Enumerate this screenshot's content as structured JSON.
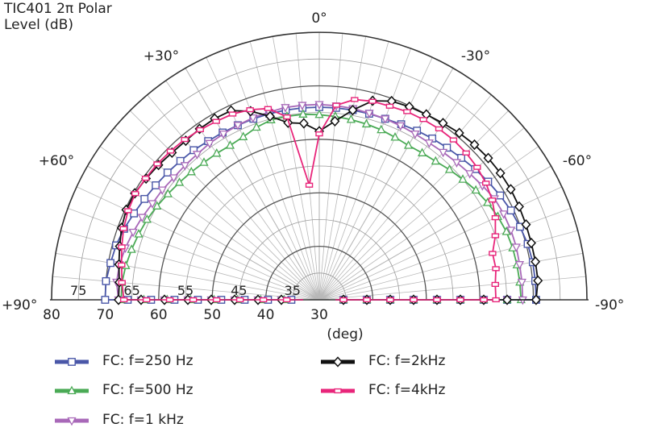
{
  "chart_data": {
    "type": "polar-line",
    "title_lines": [
      "TIC401 2π Polar",
      "Level  (dB)"
    ],
    "angle_labels": [
      {
        "angle": 0,
        "text": "0°"
      },
      {
        "angle": 30,
        "text": "+30°"
      },
      {
        "angle": -30,
        "text": "-30°"
      },
      {
        "angle": 60,
        "text": "+60°"
      },
      {
        "angle": -60,
        "text": "-60°"
      },
      {
        "angle": 90,
        "text": "+90°"
      },
      {
        "angle": -90,
        "text": "-90°"
      }
    ],
    "r_axis": {
      "min": 30,
      "max": 80,
      "ticks": [
        30,
        40,
        50,
        60,
        70,
        80
      ],
      "inner_labels": [
        35,
        45,
        55,
        65,
        75
      ],
      "unit": "(deg)"
    },
    "angle_step": 5,
    "series": [
      {
        "name": "FC: f=250 Hz",
        "color": "#4a57a8",
        "marker": "square",
        "angles": [
          90,
          85,
          80,
          75,
          70,
          65,
          60,
          55,
          50,
          45,
          40,
          35,
          30,
          25,
          20,
          15,
          10,
          5,
          0,
          -5,
          -10,
          -15,
          -20,
          -25,
          -30,
          -35,
          -40,
          -45,
          -50,
          -55,
          -60,
          -65,
          -70,
          -75,
          -80,
          -85,
          -90
        ],
        "values": [
          70,
          70,
          69.6,
          69.3,
          68.8,
          68.2,
          67.7,
          67.3,
          67,
          66.7,
          66.5,
          66.2,
          66.1,
          66,
          66,
          66,
          66,
          66,
          66,
          66,
          66,
          66,
          66,
          66.2,
          66.5,
          66.8,
          67.1,
          67.5,
          68,
          68.5,
          69,
          69.5,
          69.9,
          70.3,
          70.5,
          70.5,
          70.5
        ]
      },
      {
        "name": "FC: f=500 Hz",
        "color": "#4aaa55",
        "marker": "triangle-up",
        "angles": [
          90,
          85,
          80,
          75,
          70,
          65,
          60,
          55,
          50,
          45,
          40,
          35,
          30,
          25,
          20,
          15,
          10,
          5,
          0,
          -5,
          -10,
          -15,
          -20,
          -25,
          -30,
          -35,
          -40,
          -45,
          -50,
          -55,
          -60,
          -65,
          -70,
          -75,
          -80,
          -85,
          -90
        ],
        "values": [
          67,
          67,
          66.7,
          66.3,
          65.9,
          65.5,
          65,
          64.5,
          64.1,
          63.8,
          63.5,
          63.4,
          63.3,
          63.6,
          64.3,
          64.8,
          64.8,
          64.8,
          64.6,
          64.4,
          64.2,
          64,
          63.8,
          63.5,
          63.3,
          63.5,
          63.8,
          64.4,
          65,
          65.7,
          66.3,
          66.8,
          67.2,
          67.4,
          67.5,
          67.6,
          67.7
        ]
      },
      {
        "name": "FC: f=1 kHz",
        "color": "#a868b8",
        "marker": "triangle-down",
        "angles": [
          90,
          85,
          80,
          75,
          70,
          65,
          60,
          55,
          50,
          45,
          40,
          35,
          30,
          25,
          20,
          15,
          10,
          5,
          0,
          -5,
          -10,
          -15,
          -20,
          -25,
          -30,
          -35,
          -40,
          -45,
          -50,
          -55,
          -60,
          -65,
          -70,
          -75,
          -80,
          -85,
          -90
        ],
        "values": [
          67.5,
          68,
          67.9,
          67.5,
          67,
          66.5,
          66,
          65.8,
          65.5,
          65.5,
          65.5,
          65.7,
          65.8,
          66,
          66.2,
          66.3,
          66.5,
          66.5,
          66.5,
          66.4,
          66.3,
          66.1,
          66,
          65.9,
          65.8,
          65.8,
          66,
          66.3,
          66.7,
          67.2,
          67.8,
          68,
          68.1,
          68.1,
          68,
          68,
          68
        ]
      },
      {
        "name": "FC: f=2kHz",
        "color": "#111111",
        "marker": "diamond",
        "angles": [
          90,
          85,
          80,
          75,
          70,
          65,
          60,
          55,
          50,
          45,
          40,
          35,
          30,
          25,
          20,
          15,
          10,
          5,
          0,
          -5,
          -10,
          -15,
          -20,
          -25,
          -30,
          -35,
          -40,
          -45,
          -50,
          -55,
          -60,
          -65,
          -70,
          -75,
          -80,
          -85,
          -90
        ],
        "values": [
          67.5,
          67.5,
          68,
          68.6,
          69.3,
          69.8,
          69.8,
          69.5,
          69.2,
          68.9,
          68.8,
          69,
          69.1,
          69,
          67.5,
          65.5,
          63.6,
          63.1,
          61.5,
          63.5,
          66,
          68.5,
          69.5,
          69.8,
          70,
          70.3,
          70.7,
          71,
          71.2,
          71.3,
          71.3,
          71.2,
          71.1,
          71,
          71,
          71,
          70.5
        ]
      },
      {
        "name": "FC: f=4kHz",
        "color": "#e8257a",
        "marker": "rect-h",
        "angles": [
          90,
          85,
          80,
          75,
          70,
          65,
          60,
          55,
          50,
          45,
          40,
          35,
          30,
          25,
          20,
          15,
          10,
          5,
          0,
          -5,
          -10,
          -15,
          -20,
          -25,
          -30,
          -35,
          -40,
          -45,
          -50,
          -55,
          -60,
          -65,
          -70,
          -75,
          -80,
          -85,
          -90
        ],
        "values": [
          66.5,
          67,
          67.5,
          68.2,
          68.9,
          69.4,
          69.7,
          69.6,
          69.5,
          69.3,
          69.1,
          68.8,
          68.5,
          68.3,
          67.8,
          67,
          64.7,
          51.5,
          61,
          66.5,
          68,
          68.4,
          68.5,
          68.8,
          68.9,
          69,
          69,
          68.8,
          68.5,
          68,
          67.3,
          66.3,
          65,
          63.5,
          63.5,
          63,
          63
        ]
      }
    ]
  }
}
